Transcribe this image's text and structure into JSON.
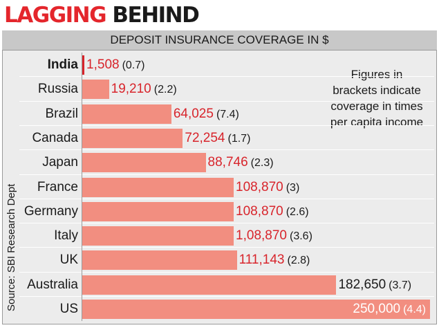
{
  "header": {
    "title_part1": "LAGGING",
    "title_part2": "BEHIND"
  },
  "subtitle": "DEPOSIT INSURANCE COVERAGE IN $",
  "source": "Source: SBI Research Dept",
  "note": [
    "Figures in",
    "brackets indicate",
    "coverage in times",
    "per capita income"
  ],
  "chart_data": {
    "type": "bar",
    "orientation": "horizontal",
    "title": "DEPOSIT INSURANCE COVERAGE IN $",
    "categories": [
      "India",
      "Russia",
      "Brazil",
      "Canada",
      "Japan",
      "France",
      "Germany",
      "Italy",
      "UK",
      "Australia",
      "US"
    ],
    "values": [
      1508,
      19210,
      64025,
      72254,
      88746,
      108870,
      108870,
      108870,
      111143,
      182650,
      250000
    ],
    "value_labels": [
      "1,508",
      "19,210",
      "64,025",
      "72,254",
      "88,746",
      "108,870",
      "108,870",
      "1,08,870",
      "111,143",
      "182,650",
      "250,000"
    ],
    "bracket_labels": [
      "(0.7)",
      "(2.2)",
      "(7.4)",
      "(1.7)",
      "(2.3)",
      "(3)",
      "(2.6)",
      "(3.6)",
      "(2.8)",
      "(3.7)",
      "(4.4)"
    ],
    "coverage_times_per_capita_income": [
      0.7,
      2.2,
      7.4,
      1.7,
      2.3,
      3,
      2.6,
      3.6,
      2.8,
      3.7,
      4.4
    ],
    "xlim": [
      0,
      250000
    ],
    "grid": false,
    "bar_color": "#f28e80",
    "value_color": "#d8242b"
  },
  "colors": {
    "accent_red": "#e4262c",
    "bar": "#f28e80",
    "value_text": "#d8242b",
    "panel_bg": "#ececec",
    "subtitle_bg": "#c8c8c8"
  }
}
